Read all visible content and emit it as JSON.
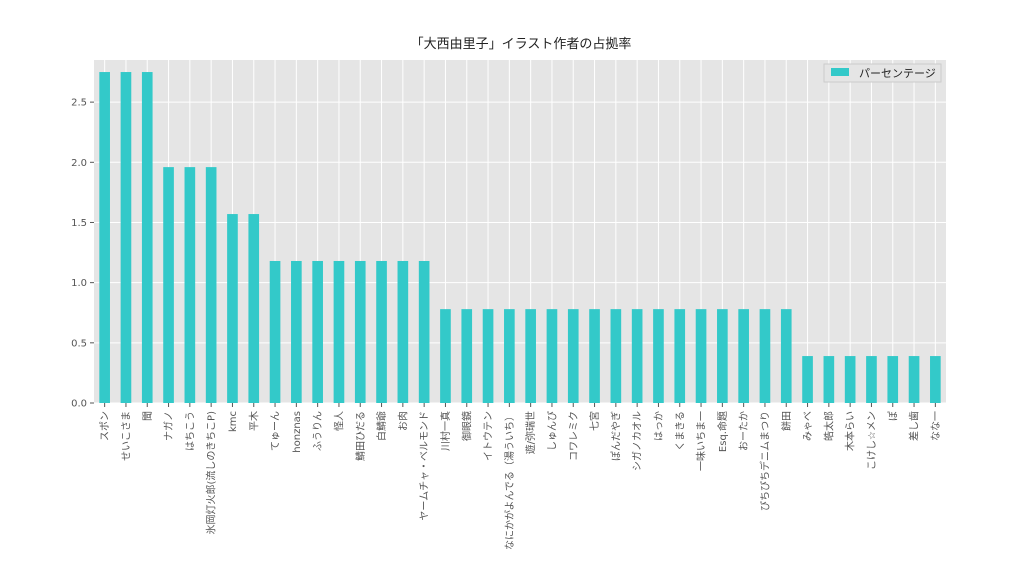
{
  "chart_data": {
    "type": "bar",
    "title": "「大西由里子」イラスト作者の占拠率",
    "xlabel": "",
    "ylabel": "",
    "ylim": [
      0,
      2.85
    ],
    "yticks": [
      "0.0",
      "0.5",
      "1.0",
      "1.5",
      "2.0",
      "2.5"
    ],
    "grid": true,
    "legend_position": "top-right",
    "bar_color": "#33c9c9",
    "categories": [
      "スポン",
      "せいこさま",
      "聞",
      "ナガノ",
      "はちこう",
      "氷岡灯火郎(流しのきちこP)",
      "kmc",
      "平木",
      "てゅーん",
      "honznas",
      "ふうりん",
      "怪人",
      "鯖田ひだる",
      "白鯖爺",
      "お肉",
      "ヤームチャ・ベルモンド",
      "川村一真",
      "御眼鏡",
      "イトウテン",
      "なにかがよんでる（湯ういち）",
      "遊/弥瑞世",
      "しゅんぴ",
      "コワレミク",
      "七宮",
      "ぽんだやぎ",
      "シガノカオル",
      "はっか",
      "くまきる",
      "一味いちま一",
      "Esq.命題",
      "おーたか",
      "ぴちぴちデニムまつり",
      "餅田",
      "みゃべ",
      "皓太郎",
      "木本らい",
      "こけし☆メン",
      "ぽ",
      "差し歯",
      "なな一"
    ],
    "series": [
      {
        "name": "パーセンテージ",
        "values": [
          2.75,
          2.75,
          2.75,
          1.96,
          1.96,
          1.96,
          1.57,
          1.57,
          1.18,
          1.18,
          1.18,
          1.18,
          1.18,
          1.18,
          1.18,
          1.18,
          0.78,
          0.78,
          0.78,
          0.78,
          0.78,
          0.78,
          0.78,
          0.78,
          0.78,
          0.78,
          0.78,
          0.78,
          0.78,
          0.78,
          0.78,
          0.78,
          0.78,
          0.39,
          0.39,
          0.39,
          0.39,
          0.39,
          0.39,
          0.39
        ]
      }
    ]
  }
}
